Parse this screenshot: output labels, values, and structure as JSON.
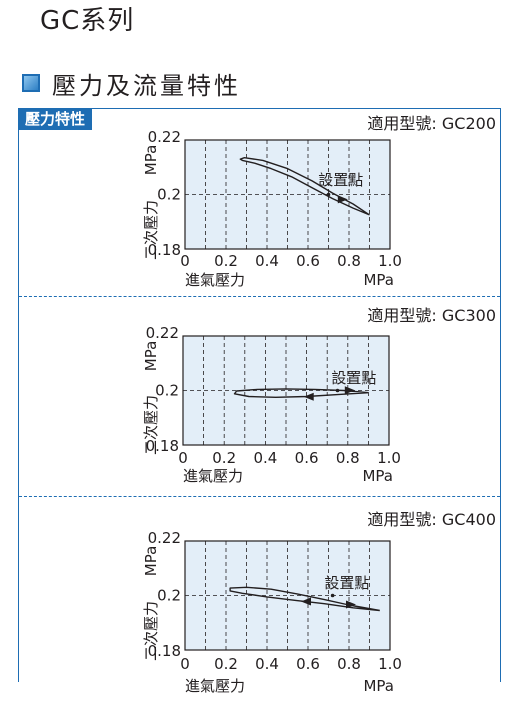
{
  "page": {
    "series_title": "GC系列",
    "section_heading": "壓力及流量特性",
    "section_tag": "壓力特性"
  },
  "colors": {
    "accent": "#1e6db3",
    "plot_bg": "#e3eef8",
    "line": "#231f20"
  },
  "chart_data": [
    {
      "type": "line",
      "model_label": "適用型號: GC200",
      "xlabel": "進氣壓力",
      "xunit": "MPa",
      "ylabel": "二次壓力",
      "yunit": "MPa",
      "annotation": "設置點",
      "set_point": [
        0.7,
        0.2
      ],
      "xlim": [
        0,
        1.0
      ],
      "ylim": [
        0.18,
        0.22
      ],
      "x_ticks": [
        "0",
        "0.2",
        "0.4",
        "0.6",
        "0.8",
        "1.0"
      ],
      "y_ticks": [
        "0.18",
        "0.2",
        "0.22"
      ],
      "grid": true,
      "hysteresis_curve": {
        "x": [
          0.9,
          0.82,
          0.72,
          0.62,
          0.52,
          0.42,
          0.34,
          0.28,
          0.27,
          0.29,
          0.38,
          0.5,
          0.62,
          0.72,
          0.82,
          0.9
        ],
        "y": [
          0.1925,
          0.195,
          0.1985,
          0.2025,
          0.2065,
          0.2095,
          0.2115,
          0.2125,
          0.213,
          0.2135,
          0.2125,
          0.2095,
          0.205,
          0.2005,
          0.1965,
          0.1925
        ]
      },
      "arrows": [
        {
          "x": 0.76,
          "y": 0.1982,
          "direction": "right"
        }
      ]
    },
    {
      "type": "line",
      "model_label": "適用型號: GC300",
      "xlabel": "進氣壓力",
      "xunit": "MPa",
      "ylabel": "二次壓力",
      "yunit": "MPa",
      "annotation": "設置點",
      "set_point": [
        0.75,
        0.2
      ],
      "xlim": [
        0,
        1.0
      ],
      "ylim": [
        0.18,
        0.22
      ],
      "x_ticks": [
        "0",
        "0.2",
        "0.4",
        "0.6",
        "0.8",
        "1.0"
      ],
      "y_ticks": [
        "0.18",
        "0.2",
        "0.22"
      ],
      "grid": true,
      "hysteresis_curve": {
        "x": [
          0.9,
          0.75,
          0.6,
          0.45,
          0.32,
          0.25,
          0.26,
          0.36,
          0.5,
          0.64,
          0.78,
          0.9
        ],
        "y": [
          0.1992,
          0.1985,
          0.1978,
          0.1975,
          0.1978,
          0.1988,
          0.1998,
          0.2004,
          0.2006,
          0.2004,
          0.2,
          0.1992
        ]
      },
      "arrows": [
        {
          "x": 0.8,
          "y": 0.2001,
          "direction": "right"
        },
        {
          "x": 0.62,
          "y": 0.1977,
          "direction": "left"
        }
      ]
    },
    {
      "type": "line",
      "model_label": "適用型號: GC400",
      "xlabel": "進氣壓力",
      "xunit": "MPa",
      "ylabel": "二次壓力",
      "yunit": "MPa",
      "annotation": "設置點",
      "set_point": [
        0.72,
        0.2
      ],
      "xlim": [
        0,
        1.0
      ],
      "ylim": [
        0.18,
        0.22
      ],
      "x_ticks": [
        "0",
        "0.2",
        "0.4",
        "0.6",
        "0.8",
        "1.0"
      ],
      "y_ticks": [
        "0.18",
        "0.2",
        "0.22"
      ],
      "grid": true,
      "hysteresis_curve": {
        "x": [
          0.95,
          0.82,
          0.68,
          0.54,
          0.4,
          0.28,
          0.22,
          0.22,
          0.3,
          0.42,
          0.55,
          0.68,
          0.8,
          0.95
        ],
        "y": [
          0.1945,
          0.1955,
          0.197,
          0.1982,
          0.1995,
          0.2008,
          0.2017,
          0.2027,
          0.203,
          0.2023,
          0.2005,
          0.1985,
          0.1965,
          0.1945
        ]
      },
      "arrows": [
        {
          "x": 0.8,
          "y": 0.1967,
          "direction": "right"
        },
        {
          "x": 0.6,
          "y": 0.1978,
          "direction": "left"
        }
      ]
    }
  ]
}
